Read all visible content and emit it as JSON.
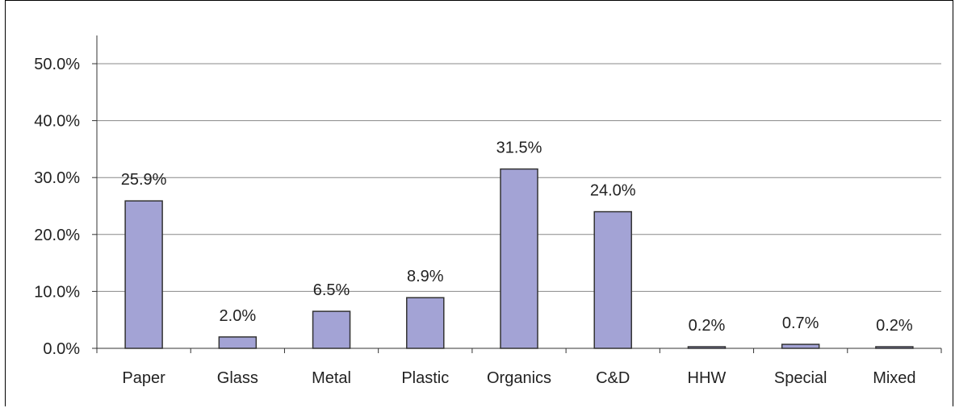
{
  "chart_data": {
    "type": "bar",
    "title": "",
    "xlabel": "",
    "ylabel": "",
    "categories": [
      "Paper",
      "Glass",
      "Metal",
      "Plastic",
      "Organics",
      "C&D",
      "HHW",
      "Special",
      "Mixed"
    ],
    "values": [
      25.9,
      2.0,
      6.5,
      8.9,
      31.5,
      24.0,
      0.2,
      0.7,
      0.2
    ],
    "data_labels": [
      "25.9%",
      "2.0%",
      "6.5%",
      "8.9%",
      "31.5%",
      "24.0%",
      "0.2%",
      "0.7%",
      "0.2%"
    ],
    "ylim": [
      0,
      50
    ],
    "y_ticks": [
      0,
      10,
      20,
      30,
      40,
      50
    ],
    "y_tick_labels": [
      "0.0%",
      "10.0%",
      "20.0%",
      "30.0%",
      "40.0%",
      "50.0%"
    ],
    "grid": true,
    "legend": "none",
    "bar_color": "#a3a3d5",
    "bar_outline_color": "#333333",
    "grid_color": "#888888"
  }
}
